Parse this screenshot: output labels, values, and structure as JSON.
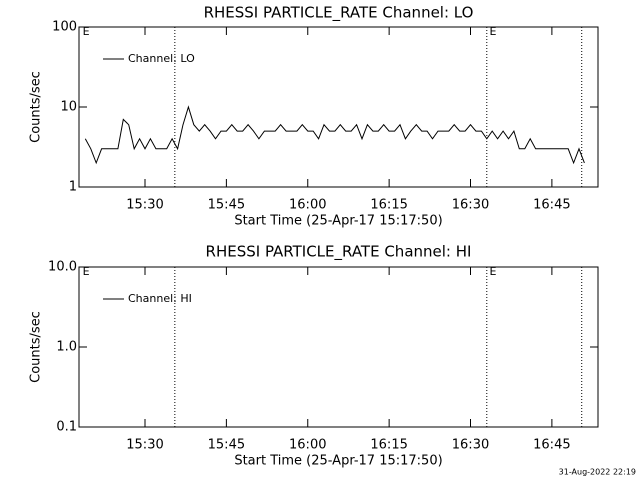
{
  "chart_data": [
    {
      "type": "line",
      "title": "RHESSI PARTICLE_RATE Channel: LO",
      "y_label": "Counts/sec",
      "x_label": "Start Time (25-Apr-17 15:17:50)",
      "log_y": true,
      "ylim": [
        1,
        100
      ],
      "yticks": [
        100,
        10,
        1
      ],
      "xlim": [
        "15:17:50",
        "16:53:30"
      ],
      "xticks": [
        "15:30",
        "15:45",
        "16:00",
        "16:15",
        "16:30",
        "16:45"
      ],
      "markers": [
        "15:35:30",
        "16:33:00",
        "16:50:30"
      ],
      "annotations": [
        {
          "text": "E",
          "x": "15:18:30"
        },
        {
          "text": "E",
          "x": "16:33:30"
        }
      ],
      "legend": "upper left",
      "series": [
        {
          "name": "Channel: LO",
          "color": "#000000",
          "x": [
            "15:19",
            "15:20",
            "15:21",
            "15:22",
            "15:23",
            "15:24",
            "15:25",
            "15:26",
            "15:27",
            "15:28",
            "15:29",
            "15:30",
            "15:31",
            "15:32",
            "15:33",
            "15:34",
            "15:35",
            "15:36",
            "15:37",
            "15:38",
            "15:39",
            "15:40",
            "15:41",
            "15:42",
            "15:43",
            "15:44",
            "15:45",
            "15:46",
            "15:47",
            "15:48",
            "15:49",
            "15:50",
            "15:51",
            "15:52",
            "15:53",
            "15:54",
            "15:55",
            "15:56",
            "15:57",
            "15:58",
            "15:59",
            "16:00",
            "16:01",
            "16:02",
            "16:03",
            "16:04",
            "16:05",
            "16:06",
            "16:07",
            "16:08",
            "16:09",
            "16:10",
            "16:11",
            "16:12",
            "16:13",
            "16:14",
            "16:15",
            "16:16",
            "16:17",
            "16:18",
            "16:19",
            "16:20",
            "16:21",
            "16:22",
            "16:23",
            "16:24",
            "16:25",
            "16:26",
            "16:27",
            "16:28",
            "16:29",
            "16:30",
            "16:31",
            "16:32",
            "16:33",
            "16:34",
            "16:35",
            "16:36",
            "16:37",
            "16:38",
            "16:39",
            "16:40",
            "16:41",
            "16:42",
            "16:43",
            "16:44",
            "16:45",
            "16:46",
            "16:47",
            "16:48",
            "16:49",
            "16:50",
            "16:51"
          ],
          "values": [
            4,
            3,
            2,
            3,
            3,
            3,
            3,
            7,
            6,
            3,
            4,
            3,
            4,
            3,
            3,
            3,
            4,
            3,
            6,
            10,
            6,
            5,
            6,
            5,
            4,
            5,
            5,
            6,
            5,
            5,
            6,
            5,
            4,
            5,
            5,
            5,
            6,
            5,
            5,
            5,
            6,
            5,
            5,
            4,
            6,
            5,
            5,
            6,
            5,
            5,
            6,
            4,
            6,
            5,
            5,
            6,
            5,
            5,
            6,
            4,
            5,
            6,
            5,
            5,
            4,
            5,
            5,
            5,
            6,
            5,
            5,
            6,
            5,
            5,
            4,
            5,
            4,
            5,
            4,
            5,
            3,
            3,
            4,
            3,
            3,
            3,
            3,
            3,
            3,
            3,
            2,
            3,
            2
          ]
        }
      ]
    },
    {
      "type": "line",
      "title": "RHESSI PARTICLE_RATE Channel: HI",
      "y_label": "Counts/sec",
      "x_label": "Start Time (25-Apr-17 15:17:50)",
      "log_y": true,
      "ylim": [
        0.1,
        10
      ],
      "yticks": [
        {
          "value": 10,
          "label": "10.0"
        },
        {
          "value": 1,
          "label": "1.0"
        },
        {
          "value": 0.1,
          "label": "0.1"
        }
      ],
      "xlim": [
        "15:17:50",
        "16:53:30"
      ],
      "xticks": [
        "15:30",
        "15:45",
        "16:00",
        "16:15",
        "16:30",
        "16:45"
      ],
      "markers": [
        "15:35:30",
        "16:33:00",
        "16:50:30"
      ],
      "annotations": [
        {
          "text": "E",
          "x": "15:18:30"
        },
        {
          "text": "E",
          "x": "16:33:30"
        }
      ],
      "legend": "upper left",
      "series": [
        {
          "name": "Channel: HI",
          "color": "#000000",
          "x": [],
          "values": []
        }
      ]
    }
  ],
  "footer": "31-Aug-2022 22:19"
}
